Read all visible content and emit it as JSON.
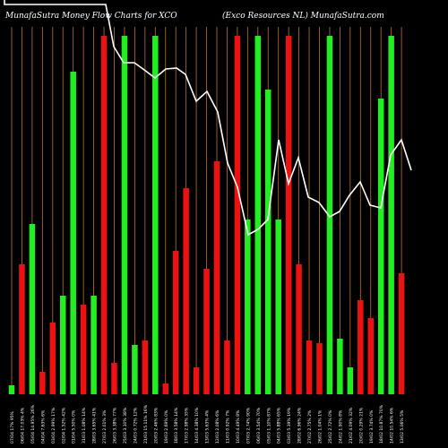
{
  "header": {
    "title_left": "MunafaSutra  Money Flow  Charts for XCO",
    "title_right": "(Exco  Resources  NL)  MunafaSutra.com"
  },
  "colors": {
    "background": "#000000",
    "up": "#22ee22",
    "down": "#ee1111",
    "gridline": "#b87333",
    "line": "#ffffff",
    "label": "#ffffff"
  },
  "chart_data": {
    "type": "bar",
    "title": "MunafaSutra  Money Flow  Charts for XCO",
    "subtitle": "(Exco  Resources  NL)  MunafaSutra.com",
    "grid": true,
    "ylim": [
      0,
      440
    ],
    "categories": [
      "07/04 17% 95%",
      "06/04 17.03% 4%",
      "05/04 14.95% 26%",
      "04/04 7.63% 6%",
      "03/04 2.99% 17%",
      "02/04 1.52% 42%",
      "01/04 5.50% 0%",
      "31/03 1.08% 14%",
      "28/03 3.65% 41%",
      "27/03 2.01% 3%",
      "26/03 3.38% 77%",
      "25/03 3.10% 38%",
      "24/03 0.72% 12%",
      "21/03 15.11% 16%",
      "20/03 2.46% 83%",
      "19/03 2.69% 0%",
      "18/03 3.58% 14%",
      "17/03 2.98% 35%",
      "14/03 4.38% 10%",
      "13/03 5.63% 4%",
      "12/03 2.08% 6%",
      "11/03 0.92% 7%",
      "10/03 4.49% 8%",
      "07/03 2.74% 90%",
      "06/03 3.54% 70%",
      "05/03 1.10% 87%",
      "04/03 5.88% 65%",
      "03/03 5.39% 19%",
      "28/02 6.96% 24%",
      "27/02 2.75% 2%",
      "26/02 1.04% 1%",
      "25/02 2.72% 0%",
      "24/02 1.90% 8%",
      "21/02 4.09% 32%",
      "20/02 0.29% 21%",
      "19/02 3.74% 0%",
      "18/02 10.87% 70%",
      "14/02 10.54% 6%",
      "13/02 5.06% 5%"
    ],
    "series": [
      {
        "values": [
          10,
          145,
          190,
          25,
          80,
          110,
          360,
          100,
          110,
          400,
          35,
          400,
          55,
          60,
          400,
          12,
          160,
          230,
          30,
          140,
          260,
          60,
          400,
          195,
          400,
          340,
          195,
          400,
          145,
          60,
          57,
          400,
          62,
          30,
          105,
          85,
          330,
          400,
          135
        ],
        "direction": [
          "up",
          "down",
          "up",
          "down",
          "down",
          "up",
          "up",
          "down",
          "up",
          "down",
          "down",
          "up",
          "up",
          "down",
          "up",
          "down",
          "down",
          "down",
          "down",
          "down",
          "down",
          "down",
          "down",
          "up",
          "up",
          "up",
          "up",
          "down",
          "down",
          "down",
          "down",
          "up",
          "up",
          "up",
          "down",
          "down",
          "up",
          "up",
          "down"
        ]
      },
      {
        "type": "line",
        "values": [
          [
            5,
            0
          ],
          [
            5,
            5
          ],
          [
            110,
            5
          ],
          [
            118,
            5
          ],
          [
            127,
            52
          ],
          [
            138,
            70
          ],
          [
            150,
            70
          ],
          [
            161,
            78
          ],
          [
            173,
            87
          ],
          [
            185,
            77
          ],
          [
            197,
            76
          ],
          [
            207,
            83
          ],
          [
            219,
            113
          ],
          [
            231,
            102
          ],
          [
            243,
            125
          ],
          [
            254,
            182
          ],
          [
            265,
            209
          ],
          [
            277,
            262
          ],
          [
            288,
            256
          ],
          [
            299,
            245
          ],
          [
            311,
            156
          ],
          [
            322,
            205
          ],
          [
            333,
            176
          ],
          [
            344,
            220
          ],
          [
            356,
            226
          ],
          [
            368,
            242
          ],
          [
            379,
            236
          ],
          [
            390,
            218
          ],
          [
            402,
            203
          ],
          [
            413,
            229
          ],
          [
            425,
            232
          ],
          [
            436,
            173
          ],
          [
            448,
            156
          ],
          [
            459,
            190
          ]
        ]
      }
    ]
  }
}
